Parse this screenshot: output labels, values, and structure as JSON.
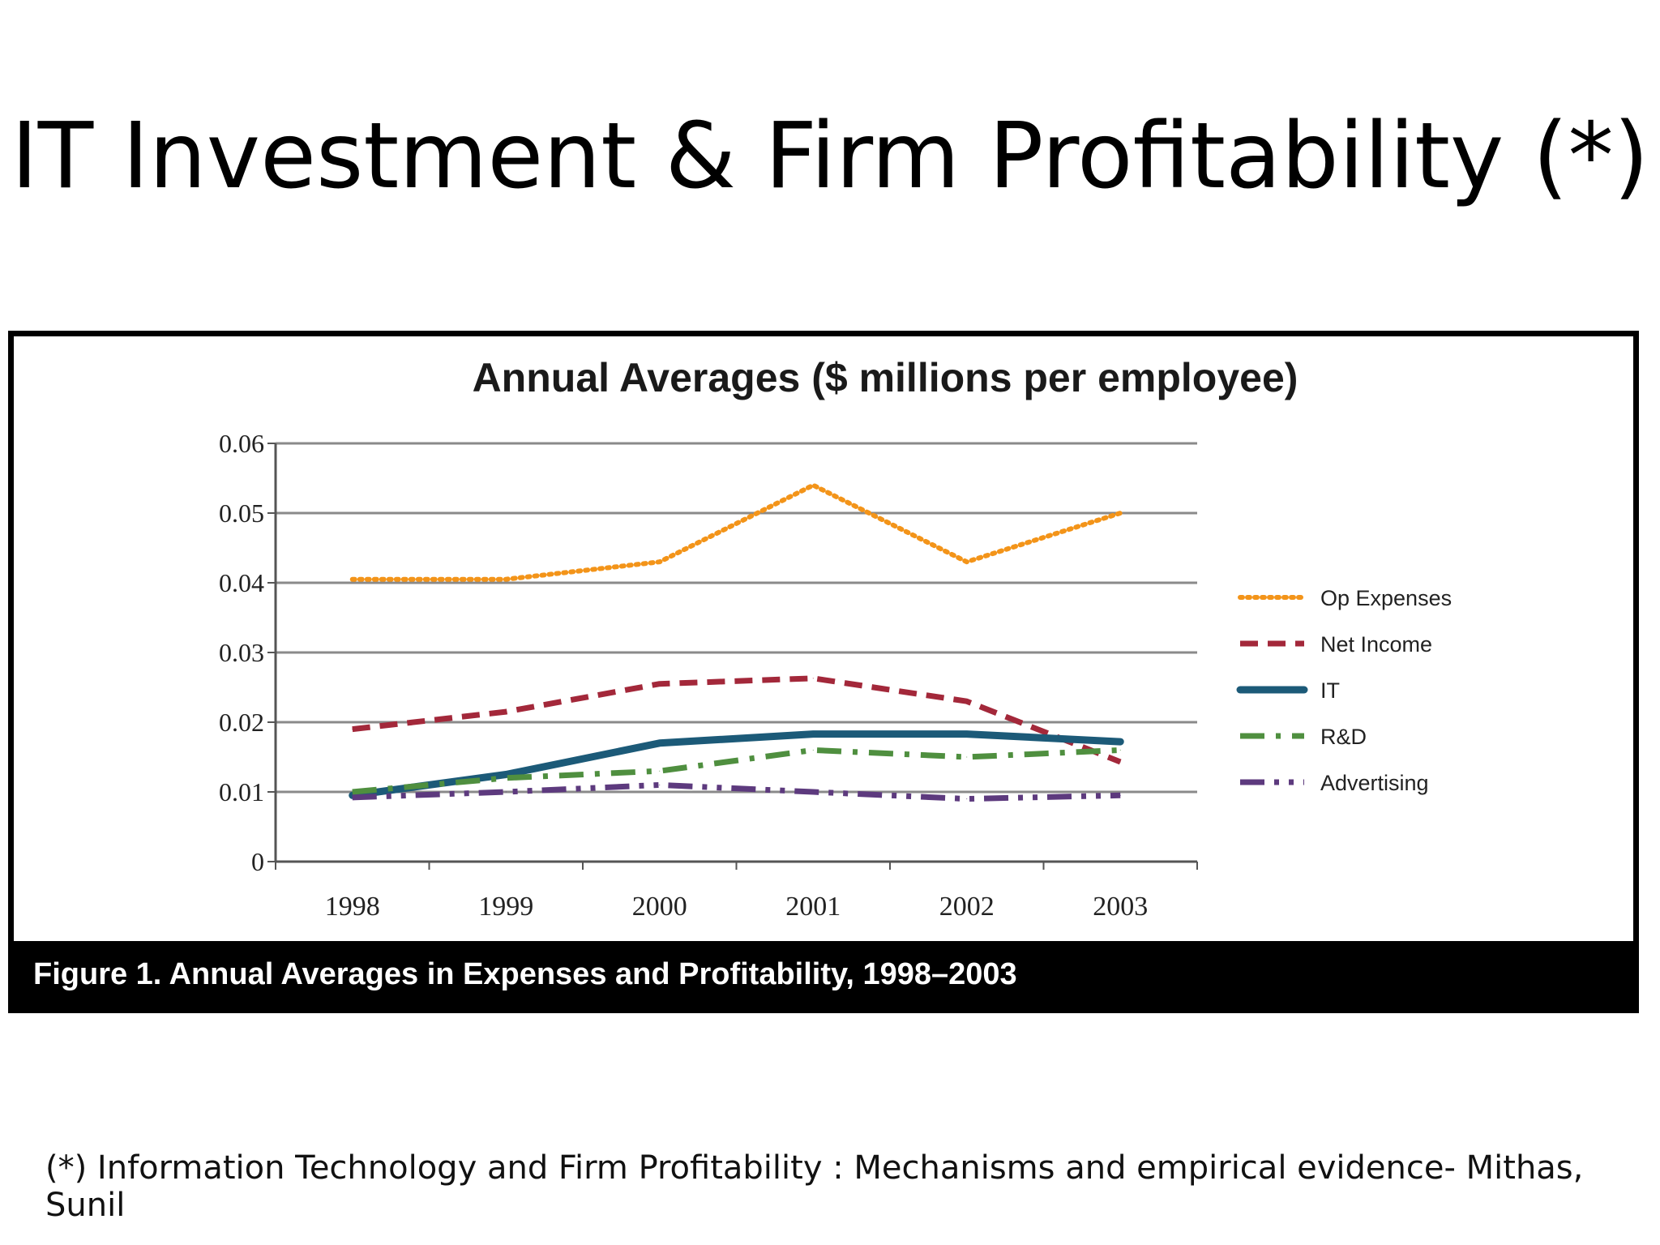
{
  "slide": {
    "title": "IT Investment & Firm Profitability (*)",
    "footnote": "(*) Information Technology and Firm Profitability : Mechanisms and empirical evidence- Mithas, Sunil"
  },
  "figure": {
    "caption": "Figure 1.  Annual Averages in Expenses and Profitability, 1998–2003"
  },
  "chart_data": {
    "type": "line",
    "title": "Annual Averages ($ millions per employee)",
    "xlabel": "",
    "ylabel": "",
    "categories": [
      "1998",
      "1999",
      "2000",
      "2001",
      "2002",
      "2003"
    ],
    "ylim": [
      0,
      0.06
    ],
    "yticks": [
      "0",
      "0.01",
      "0.02",
      "0.03",
      "0.04",
      "0.05",
      "0.06"
    ],
    "grid": true,
    "legend_position": "right",
    "series": [
      {
        "name": "Op Expenses",
        "values": [
          0.0405,
          0.0405,
          0.043,
          0.054,
          0.043,
          0.05
        ],
        "color": "#f39419",
        "style": "dotted"
      },
      {
        "name": "Net Income",
        "values": [
          0.019,
          0.0215,
          0.0255,
          0.0263,
          0.023,
          0.0143
        ],
        "color": "#a3283a",
        "style": "dashed"
      },
      {
        "name": "IT",
        "values": [
          0.0095,
          0.0125,
          0.017,
          0.0183,
          0.0183,
          0.0172
        ],
        "color": "#1c5a78",
        "style": "solid"
      },
      {
        "name": "R&D",
        "values": [
          0.01,
          0.012,
          0.013,
          0.016,
          0.015,
          0.016
        ],
        "color": "#4f8f3f",
        "style": "dashdot"
      },
      {
        "name": "Advertising",
        "values": [
          0.0092,
          0.01,
          0.011,
          0.01,
          0.009,
          0.0095
        ],
        "color": "#5d3a7e",
        "style": "dashdotdot"
      }
    ]
  }
}
